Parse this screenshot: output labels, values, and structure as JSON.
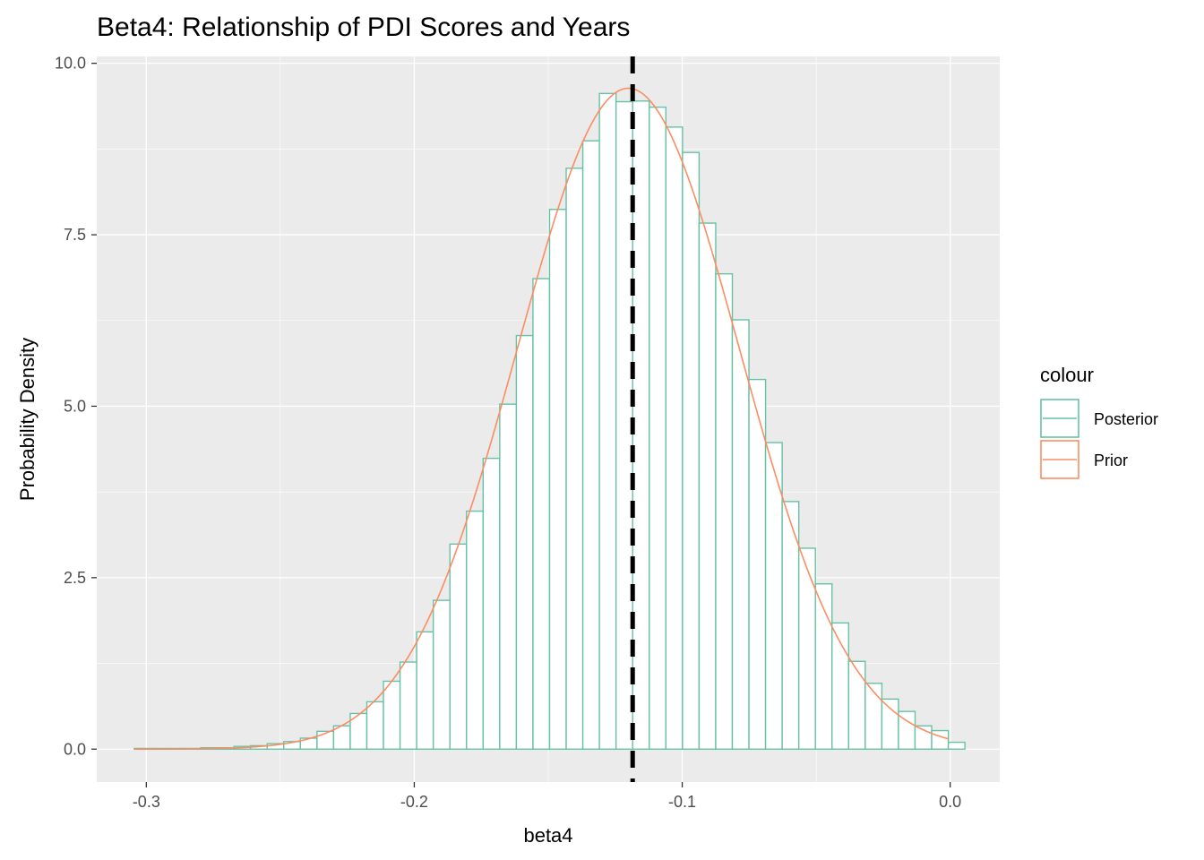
{
  "chart_data": {
    "type": "histogram",
    "title": "Beta4: Relationship of PDI Scores and Years",
    "xlabel": "beta4",
    "ylabel": "Probability Density",
    "xlim": [
      -0.3185,
      0.0185
    ],
    "ylim": [
      -0.48,
      10.1
    ],
    "x_ticks": [
      -0.3,
      -0.2,
      -0.1,
      0.0
    ],
    "x_tick_labels": [
      "-0.3",
      "-0.2",
      "-0.1",
      "0.0"
    ],
    "y_ticks": [
      0,
      2.5,
      5.0,
      7.5,
      10.0
    ],
    "y_tick_labels": [
      "0.0",
      "2.5",
      "5.0",
      "7.5",
      "10.0"
    ],
    "grid": true,
    "legend": {
      "title": "colour",
      "position": "right",
      "entries": [
        {
          "label": "Posterior",
          "color": "#66c2a5"
        },
        {
          "label": "Prior",
          "color": "#fc8d62"
        }
      ]
    },
    "histogram": {
      "series_name": "Posterior",
      "color": "#66c2a5",
      "fill": "#ffffff",
      "bin_width": 0.0062,
      "bin_centers": [
        -0.3014,
        -0.2952,
        -0.289,
        -0.2828,
        -0.2766,
        -0.2704,
        -0.2642,
        -0.258,
        -0.2518,
        -0.2456,
        -0.2394,
        -0.2332,
        -0.227,
        -0.2208,
        -0.2146,
        -0.2084,
        -0.2022,
        -0.196,
        -0.1898,
        -0.1836,
        -0.1774,
        -0.1712,
        -0.165,
        -0.1588,
        -0.1526,
        -0.1464,
        -0.1402,
        -0.134,
        -0.1278,
        -0.1216,
        -0.1154,
        -0.1092,
        -0.103,
        -0.0968,
        -0.0906,
        -0.0844,
        -0.0782,
        -0.072,
        -0.0658,
        -0.0596,
        -0.0534,
        -0.0472,
        -0.041,
        -0.0348,
        -0.0286,
        -0.0224,
        -0.0162,
        -0.01,
        -0.0038,
        0.0024
      ],
      "density": [
        0.01,
        0.01,
        0.01,
        0.01,
        0.02,
        0.02,
        0.04,
        0.05,
        0.08,
        0.11,
        0.16,
        0.26,
        0.34,
        0.52,
        0.69,
        0.99,
        1.27,
        1.71,
        2.17,
        2.99,
        3.47,
        4.24,
        5.03,
        6.03,
        6.86,
        7.87,
        8.47,
        8.87,
        9.56,
        9.44,
        9.45,
        9.36,
        9.07,
        8.7,
        7.67,
        6.93,
        6.26,
        5.39,
        4.47,
        3.61,
        2.93,
        2.41,
        1.84,
        1.28,
        0.96,
        0.73,
        0.55,
        0.34,
        0.27,
        0.1
      ]
    },
    "prior_curve": {
      "series_name": "Prior",
      "color": "#fc8d62",
      "type": "normal_density",
      "mean": -0.1201,
      "sd": 0.0414,
      "x_range": [
        -0.3044,
        -0.0006
      ]
    },
    "reference_line": {
      "x": -0.1185,
      "style": "dashed",
      "color": "#000000"
    }
  }
}
